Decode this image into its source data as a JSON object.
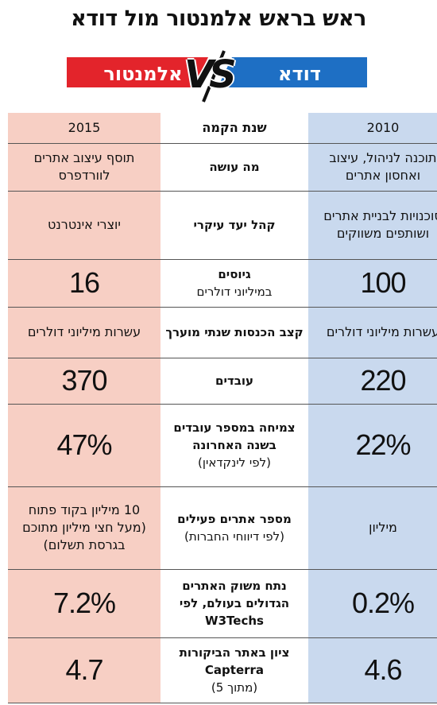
{
  "title": "ראש בראש אלמנטור מול דודא",
  "banner": {
    "left_name": "אלמנטור",
    "right_name": "דודא",
    "vs": "VS",
    "left_color": "#e3242b",
    "right_color": "#1e6fc4"
  },
  "rows": [
    {
      "right": "2010",
      "mid_bold": "שנת הקמה",
      "mid_note": "",
      "left": "2015"
    },
    {
      "right": "תוכנה לניהול, עיצוב ואחסון אתרים",
      "mid_bold": "מה עושה",
      "mid_note": "",
      "left": "תוסף עיצוב אתרים לוורדפרס"
    },
    {
      "right": "סוכנויות לבניית אתרים ושותפים משווקים",
      "mid_bold": "קהל יעד עיקרי",
      "mid_note": "",
      "left": "יוצרי אינטרנט"
    },
    {
      "right": "100",
      "mid_bold": "גיוסים",
      "mid_note": "במיליוני דולרים",
      "left": "16"
    },
    {
      "right": "עשרות מיליוני דולרים",
      "mid_bold": "קצב הכנסות שנתי מוערך",
      "mid_note": "",
      "left": "עשרות מיליוני דולרים"
    },
    {
      "right": "220",
      "mid_bold": "עובדים",
      "mid_note": "",
      "left": "370"
    },
    {
      "right": "22%",
      "mid_bold": "צמיחה במספר עובדים בשנה האחרונה",
      "mid_note": "(לפי לינקדאין)",
      "left": "47%"
    },
    {
      "right": "מיליון",
      "mid_bold": "מספר אתרים פעילים",
      "mid_note": "(לפי דיווחי החברות)",
      "left": "10 מיליון בקוד פתוח (מעל חצי מיליון מתוכם בגרסת תשלום)"
    },
    {
      "right": "0.2%",
      "mid_bold": "נתח משוק האתרים הגדולים בעולם, לפי W3Techs",
      "mid_note": "",
      "left": "7.2%"
    },
    {
      "right": "4.6",
      "mid_bold": "ציון באתר הביקורות Capterra",
      "mid_note": "(מתוך 5)",
      "left": "4.7"
    }
  ]
}
